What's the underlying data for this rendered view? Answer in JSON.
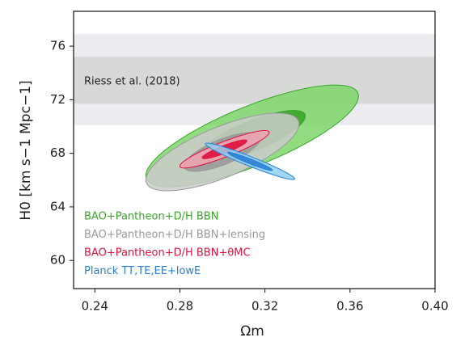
{
  "chart_data": {
    "type": "contour",
    "x_label": "Ωm",
    "y_label": "H0 [km s−1 Mpc−1]",
    "xlim": [
      0.23,
      0.4
    ],
    "ylim": [
      57.9,
      78.6
    ],
    "xticks": [
      0.24,
      0.28,
      0.32,
      0.36,
      {
        "value": 0.4,
        "label": "0.40"
      }
    ],
    "yticks": [
      60,
      64,
      68,
      72,
      76
    ],
    "bands": [
      {
        "range": [
          70.1,
          76.9
        ],
        "color": "#ececf0"
      },
      {
        "range": [
          71.7,
          75.2
        ],
        "color": "#d6d9d6"
      }
    ],
    "annotation": "Riess et al. (2018)",
    "series": [
      {
        "name": "BAO+Pantheon+D/H BBN",
        "color": "#3aa52a",
        "fill": "#7ed66a",
        "center": [
          0.314,
          69.3
        ],
        "sigma": [
          0.025,
          1.9
        ],
        "rho": 0.78
      },
      {
        "name": "BAO+Pantheon+D/H BBN+lensing",
        "color": "#9a9a9a",
        "fill": "#cbcbcb",
        "center": [
          0.3,
          68.1
        ],
        "sigma": [
          0.018,
          1.45
        ],
        "rho": 0.72
      },
      {
        "name": "BAO+Pantheon+D/H BBN+θMC",
        "color": "#e0103c",
        "fill": "#f4a3b4",
        "center": [
          0.301,
          68.3
        ],
        "sigma": [
          0.0105,
          0.7
        ],
        "rho": 0.9
      },
      {
        "name": "Planck TT,TE,EE+lowE",
        "color": "#2a7fd6",
        "fill": "#8fd0f2",
        "center": [
          0.313,
          67.4
        ],
        "sigma": [
          0.0105,
          0.68
        ],
        "rho": -0.96
      }
    ]
  }
}
